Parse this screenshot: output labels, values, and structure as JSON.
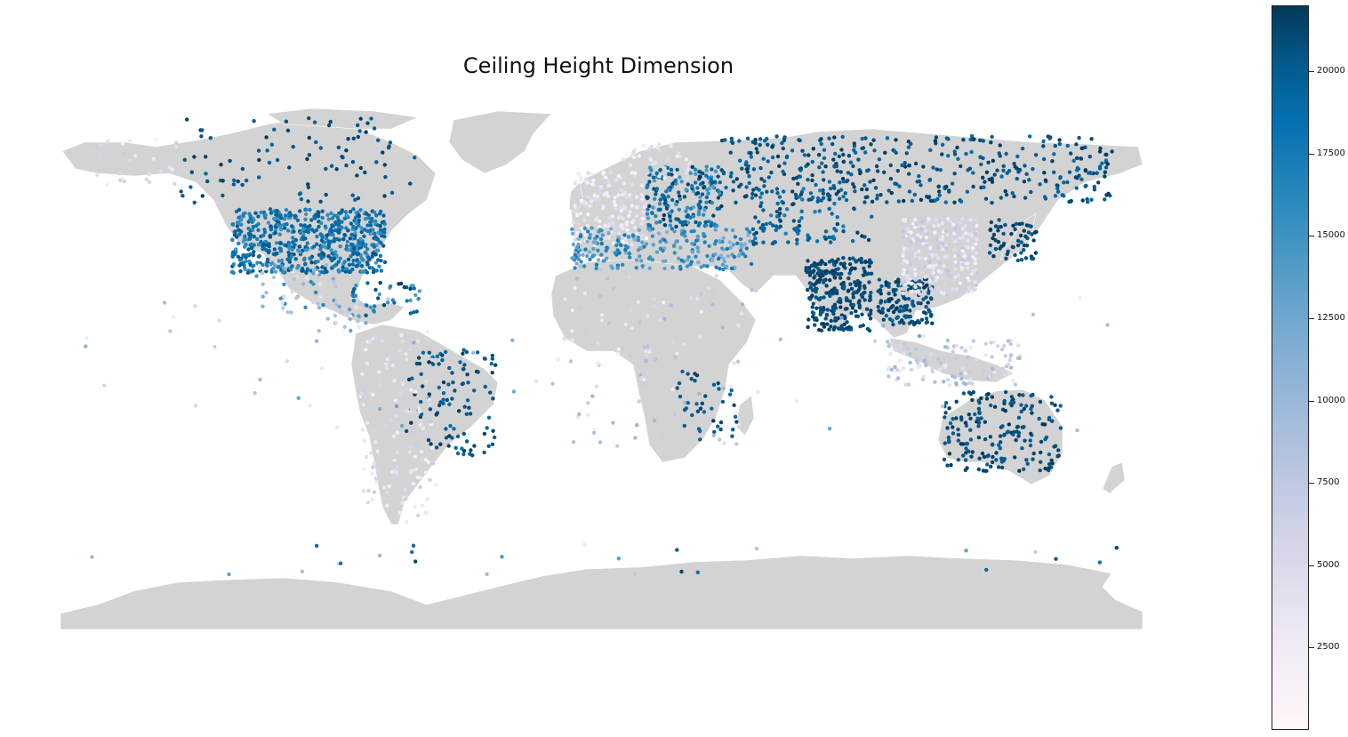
{
  "title": "Ceiling Height Dimension",
  "colors": {
    "land": "#d3d3d3",
    "border": "#ffffff",
    "cmap": [
      "#fff7fb",
      "#ece7f2",
      "#d0d1e6",
      "#a6bddb",
      "#74a9cf",
      "#3690c0",
      "#0570b0",
      "#045a8d",
      "#023858"
    ]
  },
  "colorbar": {
    "min": 0,
    "max": 22000,
    "ticks": [
      2500,
      5000,
      7500,
      10000,
      12500,
      15000,
      17500,
      20000
    ],
    "labels": [
      "2500",
      "5000",
      "7500",
      "10000",
      "12500",
      "15000",
      "17500",
      "20000"
    ]
  },
  "clusters": [
    {
      "name": "usa",
      "lon": [
        -123,
        -72
      ],
      "lat": [
        27,
        48
      ],
      "n": 620,
      "v": [
        13000,
        20000
      ]
    },
    {
      "name": "canada",
      "lon": [
        -140,
        -62
      ],
      "lat": [
        50,
        78
      ],
      "n": 95,
      "v": [
        18000,
        22000
      ]
    },
    {
      "name": "alaska",
      "lon": [
        -170,
        -140
      ],
      "lat": [
        56,
        71
      ],
      "n": 30,
      "v": [
        1000,
        6000
      ]
    },
    {
      "name": "mexico",
      "lon": [
        -115,
        -88
      ],
      "lat": [
        15,
        30
      ],
      "n": 55,
      "v": [
        2000,
        15000
      ]
    },
    {
      "name": "central-america",
      "lon": [
        -92,
        -78
      ],
      "lat": [
        8,
        18
      ],
      "n": 25,
      "v": [
        2000,
        13000
      ]
    },
    {
      "name": "caribbean",
      "lon": [
        -85,
        -60
      ],
      "lat": [
        12,
        24
      ],
      "n": 40,
      "v": [
        12000,
        22000
      ]
    },
    {
      "name": "brazil",
      "lon": [
        -65,
        -35
      ],
      "lat": [
        -33,
        2
      ],
      "n": 110,
      "v": [
        17000,
        22000
      ]
    },
    {
      "name": "south-america-west",
      "lon": [
        -80,
        -55
      ],
      "lat": [
        -55,
        8
      ],
      "n": 140,
      "v": [
        1000,
        6000
      ]
    },
    {
      "name": "europe-west",
      "lon": [
        -10,
        15
      ],
      "lat": [
        36,
        60
      ],
      "n": 180,
      "v": [
        500,
        5000
      ]
    },
    {
      "name": "europe-east",
      "lon": [
        15,
        40
      ],
      "lat": [
        42,
        62
      ],
      "n": 200,
      "v": [
        12000,
        22000
      ]
    },
    {
      "name": "scandinavia",
      "lon": [
        5,
        30
      ],
      "lat": [
        58,
        70
      ],
      "n": 40,
      "v": [
        1000,
        5000
      ]
    },
    {
      "name": "mediterranean",
      "lon": [
        -10,
        50
      ],
      "lat": [
        28,
        42
      ],
      "n": 230,
      "v": [
        10000,
        16000
      ]
    },
    {
      "name": "russia",
      "lon": [
        40,
        170
      ],
      "lat": [
        50,
        72
      ],
      "n": 420,
      "v": [
        17000,
        22000
      ]
    },
    {
      "name": "central-asia",
      "lon": [
        50,
        90
      ],
      "lat": [
        36,
        55
      ],
      "n": 120,
      "v": [
        15000,
        22000
      ]
    },
    {
      "name": "india",
      "lon": [
        68,
        90
      ],
      "lat": [
        8,
        32
      ],
      "n": 260,
      "v": [
        19000,
        22000
      ]
    },
    {
      "name": "southeast-asia",
      "lon": [
        92,
        110
      ],
      "lat": [
        10,
        25
      ],
      "n": 130,
      "v": [
        18000,
        22000
      ]
    },
    {
      "name": "china",
      "lon": [
        100,
        125
      ],
      "lat": [
        20,
        45
      ],
      "n": 300,
      "v": [
        1000,
        7000
      ]
    },
    {
      "name": "japan",
      "lon": [
        129,
        145
      ],
      "lat": [
        31,
        45
      ],
      "n": 60,
      "v": [
        19000,
        22000
      ]
    },
    {
      "name": "indonesia",
      "lon": [
        95,
        140
      ],
      "lat": [
        -10,
        5
      ],
      "n": 120,
      "v": [
        2000,
        9000
      ]
    },
    {
      "name": "africa",
      "lon": [
        -15,
        50
      ],
      "lat": [
        -30,
        30
      ],
      "n": 100,
      "v": [
        1000,
        9000
      ]
    },
    {
      "name": "east-africa-coast",
      "lon": [
        25,
        45
      ],
      "lat": [
        -30,
        -5
      ],
      "n": 40,
      "v": [
        17000,
        22000
      ]
    },
    {
      "name": "australia",
      "lon": [
        114,
        153
      ],
      "lat": [
        -38,
        -12
      ],
      "n": 190,
      "v": [
        18000,
        22000
      ]
    },
    {
      "name": "pacific",
      "lon": [
        -180,
        180
      ],
      "lat": [
        -25,
        20
      ],
      "n": 60,
      "v": [
        2000,
        12000
      ]
    },
    {
      "name": "antarctica",
      "lon": [
        -180,
        180
      ],
      "lat": [
        -72,
        -62
      ],
      "n": 25,
      "v": [
        2000,
        22000
      ]
    }
  ]
}
